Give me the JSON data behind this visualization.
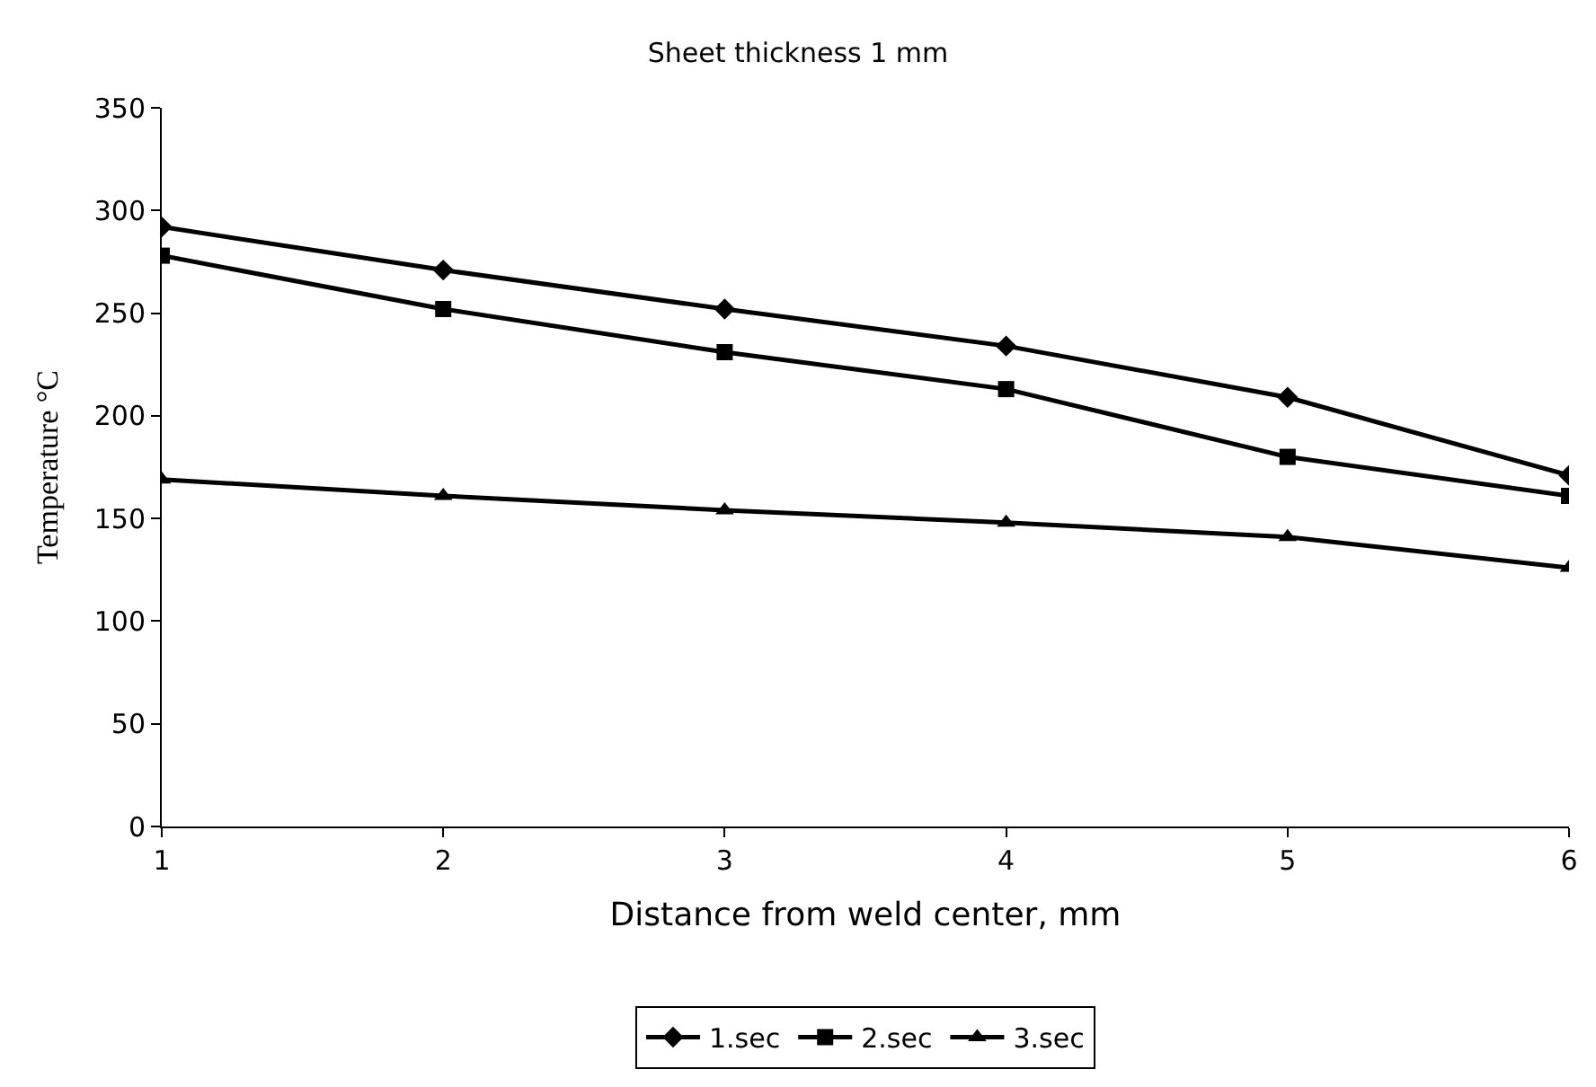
{
  "chart_data": {
    "type": "line",
    "title": "Sheet thickness 1 mm",
    "xlabel": "Distance from weld center, mm",
    "ylabel": "Temperature °C",
    "x": [
      1,
      2,
      3,
      4,
      5,
      6
    ],
    "series": [
      {
        "name": "1.sec",
        "color": "#000000",
        "marker": "diamond",
        "values": [
          292,
          271,
          252,
          234,
          209,
          171
        ]
      },
      {
        "name": "2.sec",
        "color": "#000000",
        "marker": "square",
        "values": [
          278,
          252,
          231,
          213,
          180,
          161
        ]
      },
      {
        "name": "3.sec",
        "color": "#000000",
        "marker": "triangle",
        "values": [
          169,
          161,
          154,
          148,
          141,
          126
        ]
      }
    ],
    "xlim": [
      1,
      6
    ],
    "xticks": [
      1,
      2,
      3,
      4,
      5,
      6
    ],
    "ylim": [
      0,
      350
    ],
    "yticks": [
      0,
      50,
      100,
      150,
      200,
      250,
      300,
      350
    ],
    "grid": false,
    "legend": "bottom",
    "line_style": "solid"
  }
}
